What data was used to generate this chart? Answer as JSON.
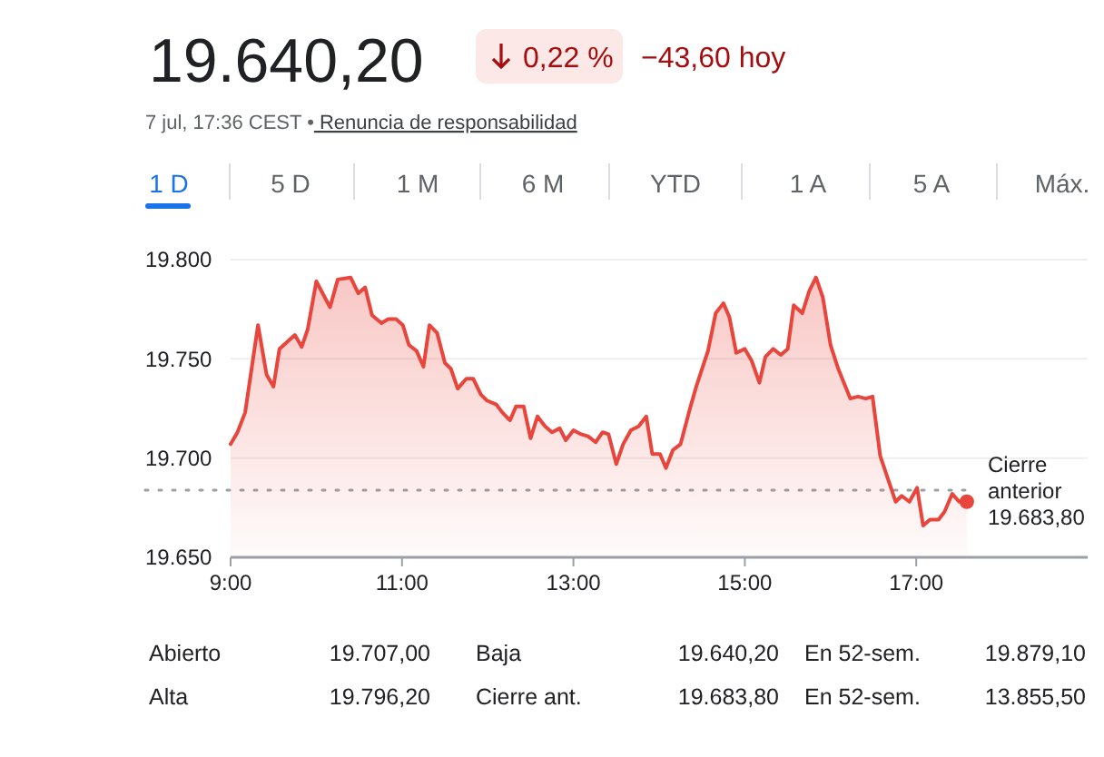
{
  "chart_data": {
    "type": "area",
    "title": "19.640,20",
    "subtitle": "7 jul, 17:36 CEST • Renuncia de responsabilidad",
    "x": [
      9.0,
      9.08,
      9.17,
      9.32,
      9.42,
      9.5,
      9.57,
      9.75,
      9.83,
      9.9,
      10.0,
      10.16,
      10.25,
      10.4,
      10.49,
      10.57,
      10.65,
      10.76,
      10.84,
      10.93,
      11.01,
      11.08,
      11.17,
      11.25,
      11.32,
      11.41,
      11.5,
      11.57,
      11.65,
      11.75,
      11.83,
      11.92,
      11.99,
      12.1,
      12.17,
      12.26,
      12.33,
      12.42,
      12.5,
      12.58,
      12.67,
      12.75,
      12.84,
      12.91,
      13.0,
      13.09,
      13.17,
      13.26,
      13.34,
      13.41,
      13.5,
      13.58,
      13.67,
      13.76,
      13.85,
      13.92,
      14.01,
      14.08,
      14.16,
      14.25,
      14.36,
      14.44,
      14.57,
      14.66,
      14.75,
      14.82,
      14.9,
      15.0,
      15.08,
      15.17,
      15.24,
      15.33,
      15.42,
      15.5,
      15.57,
      15.67,
      15.75,
      15.83,
      15.91,
      16.0,
      16.09,
      16.23,
      16.32,
      16.41,
      16.49,
      16.58,
      16.76,
      16.83,
      16.92,
      17.01,
      17.08,
      17.16,
      17.26,
      17.33,
      17.42,
      17.5,
      17.59
    ],
    "series": [
      {
        "color": "#e8453c",
        "values": [
          19707,
          19713,
          19723,
          19767,
          19742,
          19736,
          19755,
          19762,
          19756,
          19765,
          19789,
          19776,
          19790,
          19791,
          19783,
          19786,
          19772,
          19768,
          19770,
          19770,
          19767,
          19757,
          19754,
          19746,
          19767,
          19763,
          19748,
          19745,
          19735,
          19740,
          19740,
          19732,
          19729,
          19727,
          19723,
          19719,
          19726,
          19726,
          19710,
          19721,
          19716,
          19713,
          19715,
          19709,
          19714,
          19712,
          19711,
          19708,
          19713,
          19712,
          19697,
          19707,
          19714,
          19716,
          19721,
          19702,
          19702,
          19695,
          19704,
          19707,
          19725,
          19737,
          19754,
          19773,
          19778,
          19771,
          19753,
          19755,
          19749,
          19738,
          19751,
          19755,
          19752,
          19755,
          19777,
          19773,
          19784,
          19791,
          19781,
          19757,
          19745,
          19730,
          19731,
          19730,
          19731,
          19701,
          19678,
          19681,
          19678,
          19685,
          19666,
          19669,
          19669,
          19673,
          19682,
          19678,
          19678
        ]
      }
    ],
    "xlim": [
      9,
      19
    ],
    "ylim": [
      19650,
      19800
    ],
    "xticks": [
      {
        "value": 9,
        "label": "9:00"
      },
      {
        "value": 11,
        "label": "11:00"
      },
      {
        "value": 13,
        "label": "13:00"
      },
      {
        "value": 15,
        "label": "15:00"
      },
      {
        "value": 17,
        "label": "17:00"
      }
    ],
    "yticks": [
      {
        "value": 19650,
        "label": "19.650"
      },
      {
        "value": 19700,
        "label": "19.700"
      },
      {
        "value": 19750,
        "label": "19.750"
      },
      {
        "value": 19800,
        "label": "19.800"
      }
    ],
    "grid": "y",
    "ref_lines": [
      {
        "axis": "y",
        "value": 19683.8,
        "label": "Cierre\nanterior\n19.683,80",
        "color": "#9aa0a6",
        "line_style": "dotted"
      }
    ],
    "annotations": [
      "0,22 %",
      "−43,60 hoy",
      "1 D",
      "5 D",
      "1 M",
      "6 M",
      "YTD",
      "1 A",
      "5 A",
      "Máx.",
      "Abierto",
      "19.707,00",
      "Baja",
      "19.640,20",
      "En 52-sem.",
      "19.879,10",
      "Alta",
      "19.796,20",
      "Cierre ant.",
      "19.683,80",
      "En 52-sem.",
      "13.855,50"
    ]
  }
}
